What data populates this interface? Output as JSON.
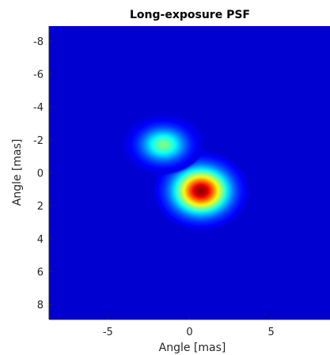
{
  "chart_data": {
    "type": "heatmap",
    "title": "Long-exposure PSF",
    "xlabel": "Angle [mas]",
    "ylabel": "Angle [mas]",
    "xlim": [
      -8.6,
      8.6
    ],
    "ylim": [
      -8.9,
      8.9
    ],
    "y_axis_direction": "reversed",
    "x_ticks": [
      {
        "value": -5,
        "label": "-5"
      },
      {
        "value": 0,
        "label": "0"
      },
      {
        "value": 5,
        "label": "5"
      }
    ],
    "y_ticks": [
      {
        "value": -8,
        "label": "-8"
      },
      {
        "value": -6,
        "label": "-6"
      },
      {
        "value": -4,
        "label": "-4"
      },
      {
        "value": -2,
        "label": "-2"
      },
      {
        "value": 0,
        "label": "0"
      },
      {
        "value": 2,
        "label": "2"
      },
      {
        "value": 4,
        "label": "4"
      },
      {
        "value": 6,
        "label": "6"
      },
      {
        "value": 8,
        "label": "8"
      }
    ],
    "colormap": "jet",
    "background_level": 0.08,
    "peaks": [
      {
        "x": 0.7,
        "y": 1.1,
        "amplitude": 0.92,
        "sigma_x": 1.1,
        "sigma_y": 0.9
      },
      {
        "x": -1.6,
        "y": -1.7,
        "amplitude": 0.42,
        "sigma_x": 0.95,
        "sigma_y": 0.7
      }
    ],
    "grid": false
  }
}
